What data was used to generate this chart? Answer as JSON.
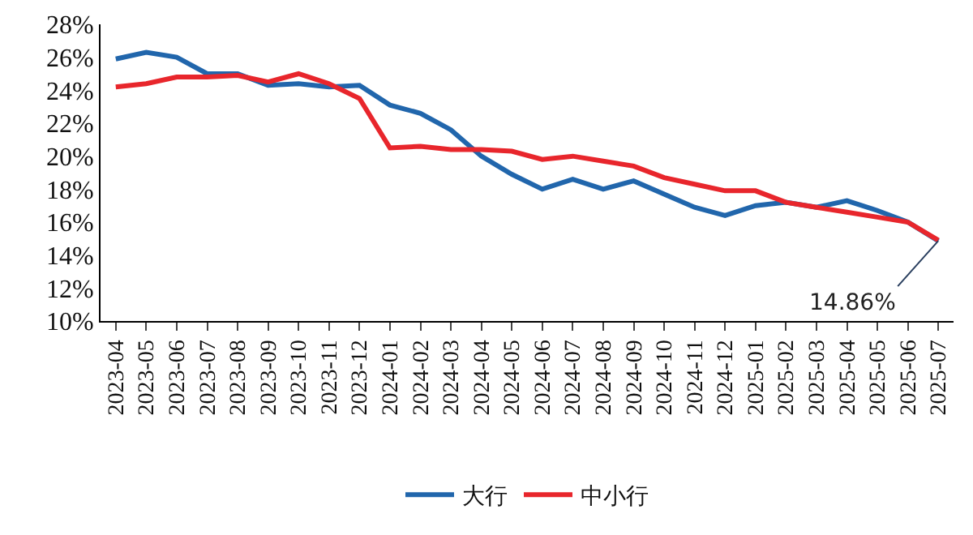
{
  "chart_data": {
    "type": "line",
    "categories": [
      "2023-04",
      "2023-05",
      "2023-06",
      "2023-07",
      "2023-08",
      "2023-09",
      "2023-10",
      "2023-11",
      "2023-12",
      "2024-01",
      "2024-02",
      "2024-03",
      "2024-04",
      "2024-05",
      "2024-06",
      "2024-07",
      "2024-08",
      "2024-09",
      "2024-10",
      "2024-11",
      "2024-12",
      "2025-01",
      "2025-02",
      "2025-03",
      "2025-04",
      "2025-05",
      "2025-06",
      "2025-07"
    ],
    "series": [
      {
        "name": "大行",
        "color": "#2166ac",
        "values": [
          25.9,
          26.3,
          26.0,
          25.0,
          25.0,
          24.3,
          24.4,
          24.2,
          24.3,
          23.1,
          22.6,
          21.6,
          20.0,
          18.9,
          18.0,
          18.6,
          18.0,
          18.5,
          17.7,
          16.9,
          16.4,
          17.0,
          17.2,
          16.9,
          17.3,
          16.7,
          16.0,
          14.86
        ]
      },
      {
        "name": "中小行",
        "color": "#e8262c",
        "values": [
          24.2,
          24.4,
          24.8,
          24.8,
          24.9,
          24.5,
          25.0,
          24.4,
          23.5,
          20.5,
          20.6,
          20.4,
          20.4,
          20.3,
          19.8,
          20.0,
          19.7,
          19.4,
          18.7,
          18.3,
          17.9,
          17.9,
          17.2,
          16.9,
          16.6,
          16.3,
          16.0,
          14.9
        ]
      }
    ],
    "ylim": [
      10,
      28
    ],
    "yticks": [
      {
        "value": 10,
        "label": "10%"
      },
      {
        "value": 12,
        "label": "12%"
      },
      {
        "value": 14,
        "label": "14%"
      },
      {
        "value": 16,
        "label": "16%"
      },
      {
        "value": 18,
        "label": "18%"
      },
      {
        "value": 20,
        "label": "20%"
      },
      {
        "value": 22,
        "label": "22%"
      },
      {
        "value": 24,
        "label": "24%"
      },
      {
        "value": 26,
        "label": "26%"
      },
      {
        "value": 28,
        "label": "28%"
      }
    ],
    "annotations": [
      {
        "text": "14.86%",
        "x": "2025-07",
        "y": 14.86
      }
    ],
    "legend": "bottom",
    "marker": "none",
    "line_style": "solid"
  }
}
